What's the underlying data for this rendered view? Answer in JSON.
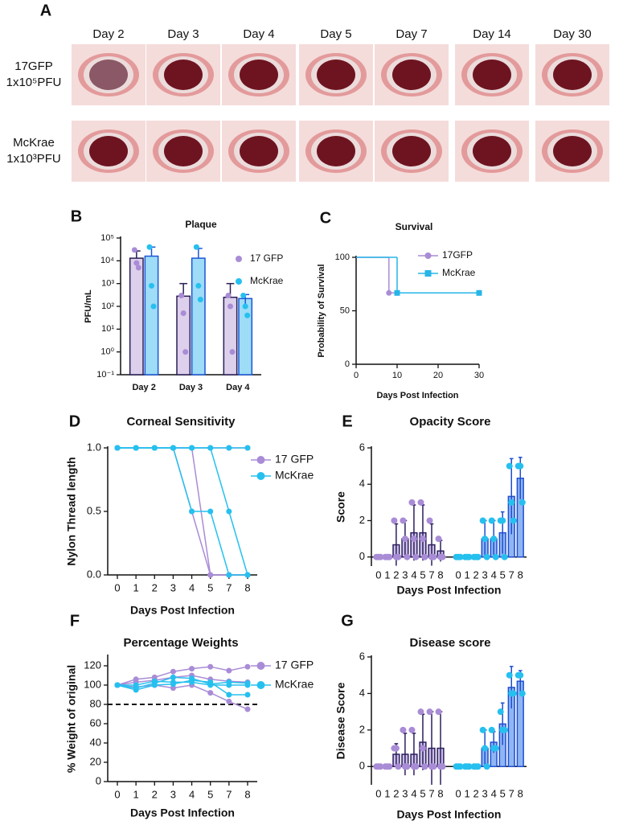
{
  "figure": {
    "panel_labels": [
      "A",
      "B",
      "C",
      "D",
      "E",
      "F",
      "G"
    ],
    "photo_grid": {
      "columns": [
        "Day 2",
        "Day 3",
        "Day 4",
        "Day 5",
        "Day 7",
        "Day 14",
        "Day 30"
      ],
      "rows": [
        [
          "17GFP",
          "1x10⁵PFU"
        ],
        [
          "McKrae",
          "1x10³PFU"
        ]
      ]
    }
  },
  "chart_data": [
    {
      "type": "bar",
      "title": "Plaque",
      "ylabel": "PFU/mL",
      "log_scale": true,
      "legend": "right",
      "categories": [
        "Day 2",
        "Day 3",
        "Day 4"
      ],
      "ylim": [
        0.1,
        100000
      ],
      "yticks": [
        {
          "value": 0.1,
          "label": "10⁻¹"
        },
        {
          "value": 1,
          "label": "10⁰"
        },
        {
          "value": 10,
          "label": "10¹"
        },
        {
          "value": 100,
          "label": "10²"
        },
        {
          "value": 1000,
          "label": "10³"
        },
        {
          "value": 10000,
          "label": "10⁴"
        },
        {
          "value": 100000,
          "label": "10⁵"
        }
      ],
      "series": [
        {
          "name": "17 GFP",
          "color": "#a98cd6",
          "bar_color": "#ddd0ec",
          "edge_color": "#2a1f55",
          "values": [
            13000,
            280,
            250
          ],
          "errors": [
            14000,
            720,
            750
          ],
          "points": [
            [
              30000,
              8000,
              5000
            ],
            [
              300,
              50,
              1
            ],
            [
              300,
              100,
              1
            ]
          ]
        },
        {
          "name": "McKrae",
          "color": "#26c0ef",
          "bar_color": "#9edcf7",
          "edge_color": "#1c56d6",
          "values": [
            16000,
            13000,
            220
          ],
          "errors": [
            24000,
            22000,
            110
          ],
          "points": [
            [
              40000,
              800,
              100
            ],
            [
              40000,
              800,
              200
            ],
            [
              300,
              100,
              40
            ]
          ]
        }
      ]
    },
    {
      "type": "step",
      "title": "Survival",
      "xlabel": "Days Post Infection",
      "ylabel": "Probability of Survival",
      "legend": "upper right",
      "xlim": [
        0,
        30
      ],
      "xticks": [
        0,
        10,
        20,
        30
      ],
      "ylim": [
        0,
        100
      ],
      "yticks": [
        0,
        50,
        100
      ],
      "series": [
        {
          "name": "17GFP",
          "color": "#a98cd6",
          "marker": "circle",
          "x": [
            0,
            8,
            30
          ],
          "values": [
            100,
            66.7,
            66.7
          ]
        },
        {
          "name": "McKrae",
          "color": "#26b5e8",
          "marker": "square",
          "x": [
            0,
            10,
            30
          ],
          "values": [
            100,
            66.7,
            66.7
          ]
        }
      ]
    },
    {
      "type": "line",
      "title": "Corneal Sensitivity",
      "xlabel": "Days Post Infection",
      "ylabel": "Nylon Thread length",
      "legend": "upper right",
      "categories": [
        "0",
        "1",
        "2",
        "3",
        "4",
        "5",
        "7",
        "8"
      ],
      "ylim": [
        0,
        1
      ],
      "yticks": [
        {
          "value": 0,
          "label": "0.0"
        },
        {
          "value": 0.5,
          "label": "0.5"
        },
        {
          "value": 1,
          "label": "1.0"
        }
      ],
      "series": [
        {
          "name": "17 GFP",
          "color": "#a98cd6",
          "lines": [
            [
              1,
              1,
              1,
              1,
              0.5,
              0,
              0,
              0
            ],
            [
              1,
              1,
              1,
              1,
              1,
              0,
              0,
              0
            ],
            [
              1,
              1,
              1,
              1,
              1,
              1,
              1,
              1
            ]
          ]
        },
        {
          "name": "McKrae",
          "color": "#26c0ef",
          "lines": [
            [
              1,
              1,
              1,
              1,
              0.5,
              0.5,
              0,
              0
            ],
            [
              1,
              1,
              1,
              1,
              1,
              1,
              0.5,
              0
            ],
            [
              1,
              1,
              1,
              1,
              1,
              1,
              1,
              1
            ]
          ]
        }
      ]
    },
    {
      "type": "bar",
      "group_by": "series",
      "title": "Opacity Score",
      "xlabel": "Days Post Infection",
      "ylabel": "Score",
      "categories": [
        "0",
        "1",
        "2",
        "3",
        "4",
        "5",
        "7",
        "8"
      ],
      "ylim": [
        -0.5,
        6
      ],
      "yticks": [
        0,
        2,
        4,
        6
      ],
      "series": [
        {
          "name": "17 GFP",
          "color": "#a98cd6",
          "bar_color": "#cbbde6",
          "edge_color": "#2c1f5e",
          "values": [
            0,
            0,
            0.67,
            1,
            1.33,
            1.33,
            0.67,
            0.33
          ],
          "errors": [
            0,
            0,
            1.15,
            1,
            1.53,
            1.53,
            1.15,
            0.58
          ],
          "points": [
            [
              0,
              0,
              0
            ],
            [
              0,
              0,
              0
            ],
            [
              2,
              0,
              0
            ],
            [
              2,
              1,
              0
            ],
            [
              3,
              1,
              0
            ],
            [
              3,
              1,
              0
            ],
            [
              2,
              0,
              0
            ],
            [
              1,
              0,
              0
            ]
          ]
        },
        {
          "name": "McKrae",
          "color": "#26c0ef",
          "bar_color": "#8fb6f3",
          "edge_color": "#1f4fd0",
          "values": [
            0,
            0,
            0,
            1,
            1,
            1.33,
            3.33,
            4.33
          ],
          "errors": [
            0,
            0,
            0,
            1,
            1,
            1.15,
            2.08,
            1.15
          ],
          "points": [
            [
              0,
              0,
              0
            ],
            [
              0,
              0,
              0
            ],
            [
              0,
              0,
              0
            ],
            [
              2,
              1,
              0
            ],
            [
              2,
              1,
              0
            ],
            [
              2,
              2,
              0
            ],
            [
              5,
              3,
              2
            ],
            [
              5,
              5,
              3
            ]
          ]
        }
      ]
    },
    {
      "type": "line",
      "title": "Percentage Weights",
      "xlabel": "Days Post Infection",
      "ylabel": "% Weight of original",
      "legend": "upper right",
      "reference_line": 80,
      "categories": [
        "0",
        "1",
        "2",
        "3",
        "4",
        "5",
        "7",
        "8"
      ],
      "ylim": [
        0,
        130
      ],
      "yticks": [
        0,
        20,
        40,
        60,
        80,
        100,
        120
      ],
      "series": [
        {
          "name": "17 GFP",
          "color": "#a98cd6",
          "lines": [
            [
              100,
              106,
              108,
              114,
              117,
              119,
              115,
              119
            ],
            [
              100,
              103,
              105,
              108,
              110,
              106,
              104,
              103
            ],
            [
              100,
              98,
              100,
              97,
              100,
              92,
              83,
              75
            ]
          ]
        },
        {
          "name": "McKrae",
          "color": "#26c0ef",
          "lines": [
            [
              100,
              97,
              102,
              108,
              107,
              101,
              103,
              102
            ],
            [
              100,
              95,
              100,
              101,
              105,
              103,
              90,
              90
            ],
            [
              100,
              100,
              104,
              103,
              103,
              100,
              100,
              100
            ]
          ]
        }
      ]
    },
    {
      "type": "bar",
      "group_by": "series",
      "title": "Disease score",
      "xlabel": "Days Post Infection",
      "ylabel": "Disease Score",
      "categories": [
        "0",
        "1",
        "2",
        "3",
        "4",
        "5",
        "7",
        "8"
      ],
      "ylim": [
        -1,
        6
      ],
      "yticks": [
        0,
        2,
        4,
        6
      ],
      "series": [
        {
          "name": "17 GFP",
          "color": "#a98cd6",
          "bar_color": "#cbbde6",
          "edge_color": "#2c1f5e",
          "values": [
            0,
            0,
            0.67,
            0.67,
            0.67,
            1.33,
            1,
            1
          ],
          "errors": [
            0,
            0,
            0.58,
            1.15,
            1.15,
            1.53,
            2,
            2
          ],
          "points": [
            [
              0,
              0,
              0
            ],
            [
              0,
              0,
              0
            ],
            [
              1,
              1,
              0
            ],
            [
              2,
              0,
              0
            ],
            [
              2,
              0,
              0
            ],
            [
              3,
              1,
              0
            ],
            [
              3,
              0,
              0
            ],
            [
              3,
              0,
              0
            ]
          ]
        },
        {
          "name": "McKrae",
          "color": "#26c0ef",
          "bar_color": "#8fb6f3",
          "edge_color": "#1f4fd0",
          "values": [
            0,
            0,
            0,
            1,
            1.33,
            2.33,
            4.33,
            4.67
          ],
          "errors": [
            0,
            0,
            0,
            1,
            0.58,
            1.15,
            1.15,
            0.58
          ],
          "points": [
            [
              0,
              0,
              0
            ],
            [
              0,
              0,
              0
            ],
            [
              0,
              0,
              0
            ],
            [
              2,
              1,
              0
            ],
            [
              2,
              1,
              1
            ],
            [
              3,
              2,
              2
            ],
            [
              5,
              4,
              4
            ],
            [
              5,
              5,
              4
            ]
          ]
        }
      ]
    }
  ]
}
